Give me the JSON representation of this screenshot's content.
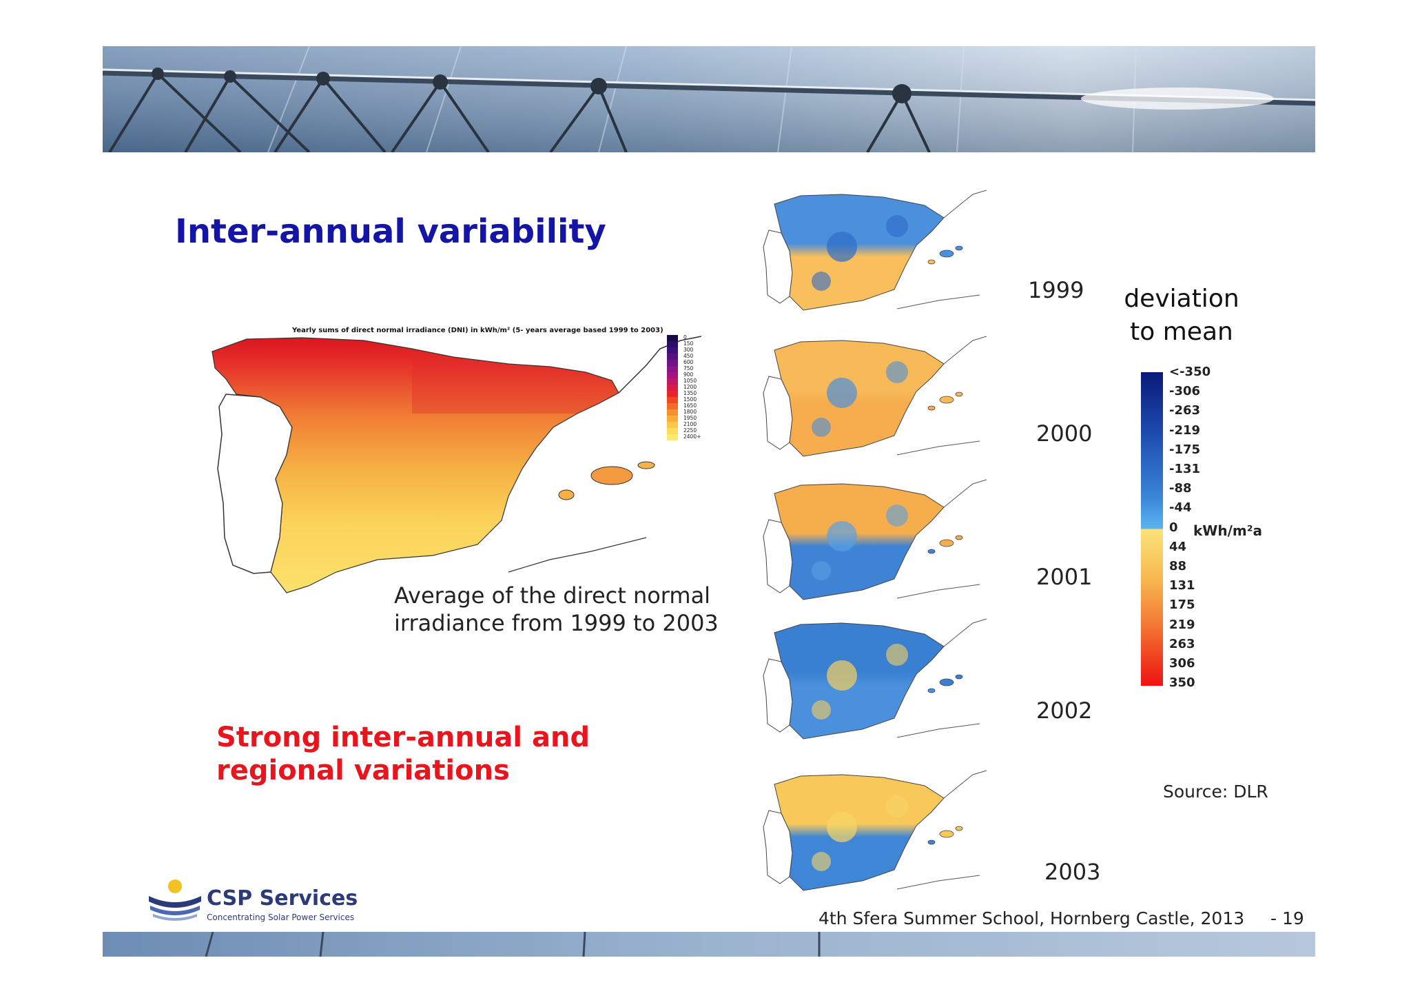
{
  "slide": {
    "title": "Inter-annual variability",
    "highlight_line1": "Strong inter-annual and",
    "highlight_line2": "regional variations"
  },
  "main_map": {
    "title": "Yearly sums of direct normal irradiance (DNI) in kWh/m² (5- years average based 1999 to 2003)",
    "caption_line1": "Average of the direct normal",
    "caption_line2": "irradiance from 1999 to 2003",
    "legend_labels": [
      "0",
      "150",
      "300",
      "450",
      "600",
      "750",
      "900",
      "1050",
      "1200",
      "1350",
      "1500",
      "1650",
      "1800",
      "1950",
      "2100",
      "2250",
      "2400+"
    ],
    "legend_colors": [
      "#1a0a4a",
      "#2a0f66",
      "#3e0f78",
      "#561282",
      "#6e1488",
      "#88168a",
      "#a3167f",
      "#c01766",
      "#d81b48",
      "#e8262c",
      "#ee4a26",
      "#f26e28",
      "#f5902e",
      "#f7ad38",
      "#f9c848",
      "#fbdc5c",
      "#fde870"
    ]
  },
  "yearly_maps": [
    {
      "year": "1999"
    },
    {
      "year": "2000"
    },
    {
      "year": "2001"
    },
    {
      "year": "2002"
    },
    {
      "year": "2003"
    }
  ],
  "deviation_legend": {
    "title_line1": "deviation",
    "title_line2": "to mean",
    "unit": "kWh/m²a",
    "labels": [
      "<-350",
      "-306",
      "-263",
      "-219",
      "-175",
      "-131",
      "-88",
      "-44",
      "0",
      "44",
      "88",
      "131",
      "175",
      "219",
      "263",
      "306",
      "350"
    ]
  },
  "source": "Source: DLR",
  "logo": {
    "name": "CSP Services",
    "tagline": "Concentrating Solar Power Services"
  },
  "footer": {
    "text": "4th Sfera Summer School, Hornberg Castle, 2013",
    "page": "- 19"
  }
}
